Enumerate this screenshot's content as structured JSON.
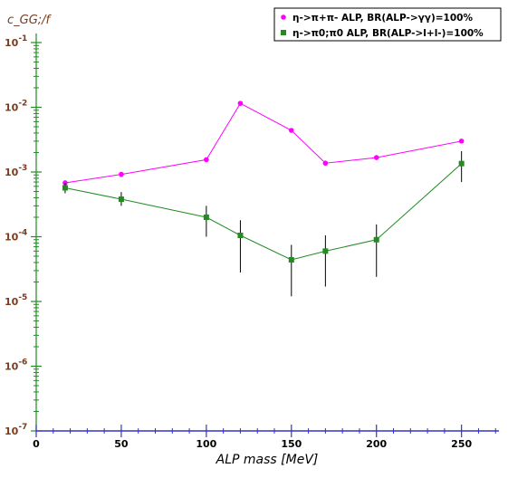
{
  "chart_data": {
    "type": "line",
    "title": "",
    "xlabel": "ALP mass   [MeV]",
    "ylabel": "c_GG;/f",
    "xlim": [
      0,
      272
    ],
    "ylim": [
      1e-07,
      0.1
    ],
    "yscale": "log",
    "x_ticks": [
      0,
      50,
      100,
      150,
      200,
      250
    ],
    "y_ticks": [
      {
        "value": 1e-07,
        "base": "10",
        "exp": "-7"
      },
      {
        "value": 1e-06,
        "base": "10",
        "exp": "-6"
      },
      {
        "value": 1e-05,
        "base": "10",
        "exp": "-5"
      },
      {
        "value": 0.0001,
        "base": "10",
        "exp": "-4"
      },
      {
        "value": 0.001,
        "base": "10",
        "exp": "-3"
      },
      {
        "value": 0.01,
        "base": "10",
        "exp": "-2"
      },
      {
        "value": 0.1,
        "base": "10",
        "exp": "-1"
      }
    ],
    "legend_position": "top-right",
    "colors": {
      "xaxis": "#3333cc",
      "yaxis": "#228b22",
      "ylabel": "#7a3b1c"
    },
    "series": [
      {
        "name": "η->π+π- ALP, BR(ALP->γγ)=100%",
        "color": "#ff00ff",
        "marker": "circle",
        "x": [
          17,
          50,
          100,
          120,
          150,
          170,
          200,
          250
        ],
        "y": [
          0.00068,
          0.00092,
          0.00155,
          0.0115,
          0.0044,
          0.00137,
          0.00167,
          0.003
        ]
      },
      {
        "name": "η->π0;π0 ALP, BR(ALP->l+l-)=100%",
        "color": "#228b22",
        "marker": "square",
        "x": [
          17,
          50,
          100,
          120,
          150,
          170,
          200,
          250
        ],
        "y": [
          0.00057,
          0.00038,
          0.0002,
          0.000105,
          4.4e-05,
          6e-05,
          9e-05,
          0.00135
        ],
        "err_low": [
          0.00047,
          0.0003,
          0.0001,
          2.8e-05,
          1.2e-05,
          1.7e-05,
          2.4e-05,
          0.0007
        ],
        "err_high": [
          0.00068,
          0.00049,
          0.0003,
          0.00018,
          7.5e-05,
          0.000105,
          0.000155,
          0.0021
        ]
      }
    ]
  }
}
